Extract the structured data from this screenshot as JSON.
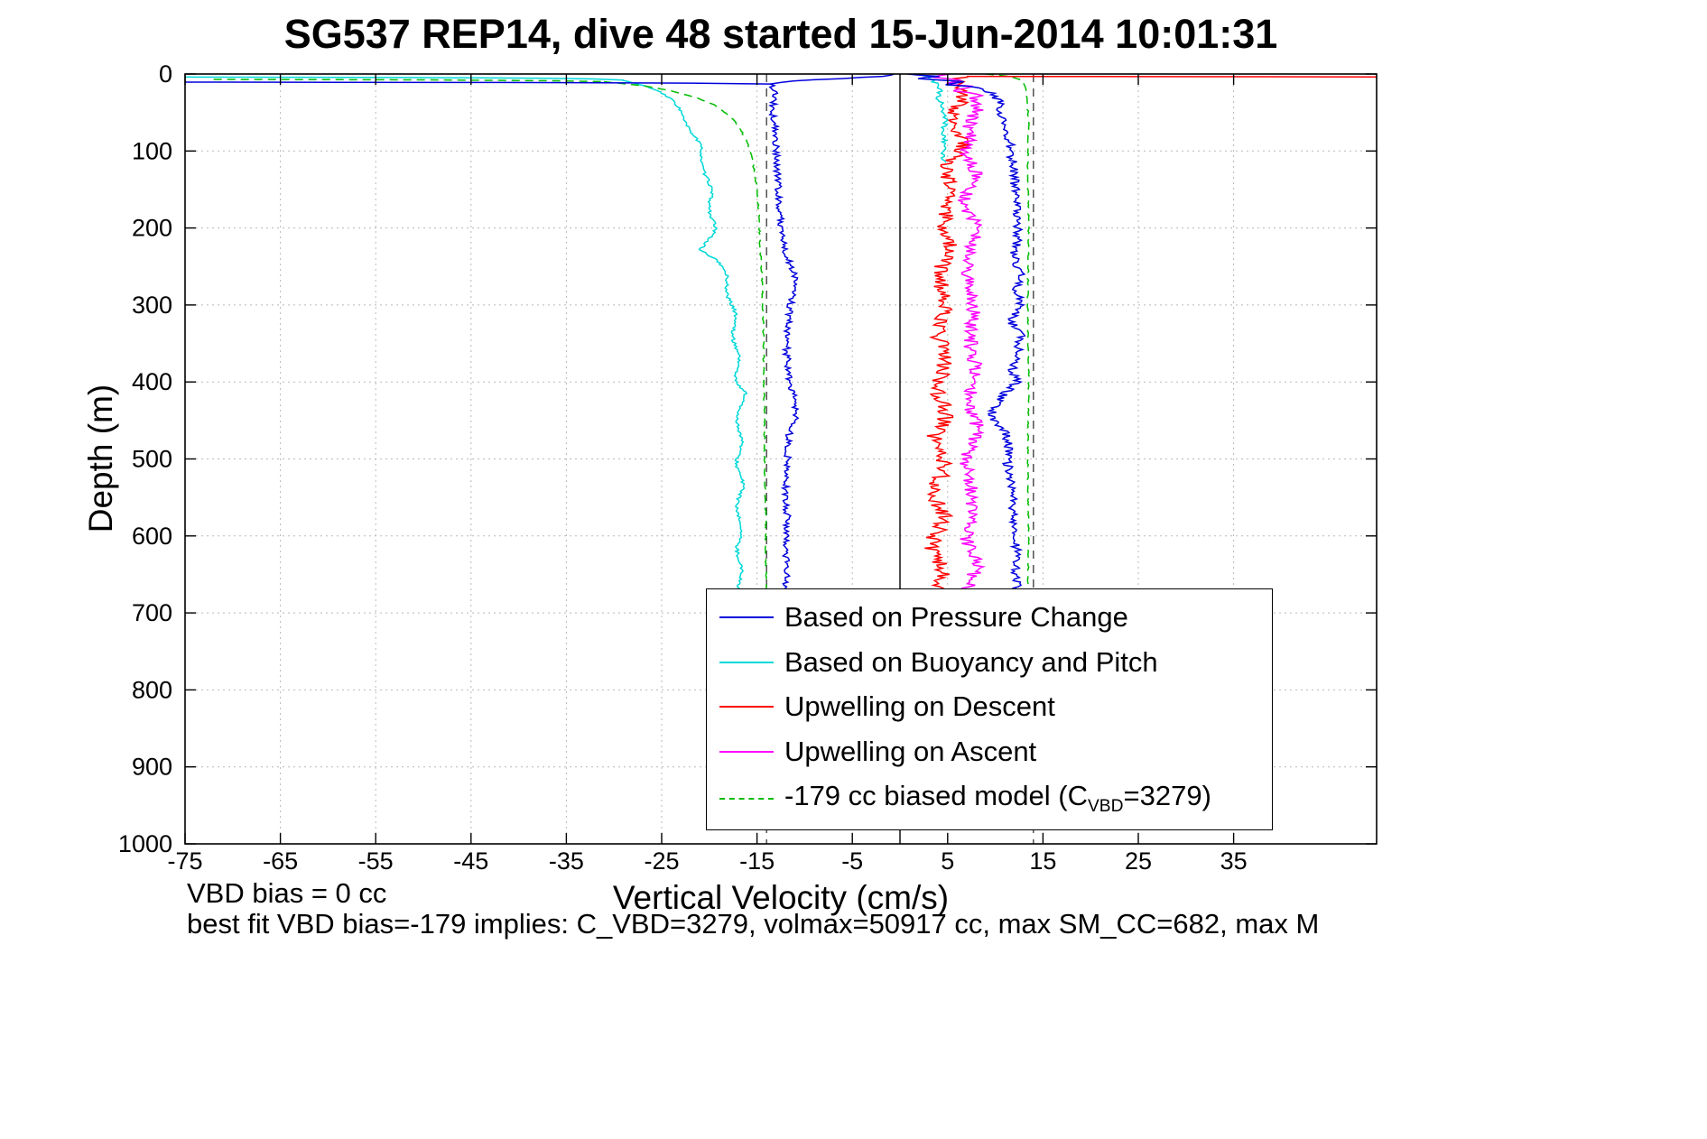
{
  "chart_data": {
    "type": "line",
    "title": "SG537 REP14, dive 48 started 15-Jun-2014 10:01:31",
    "xlabel": "Vertical Velocity (cm/s)",
    "ylabel": "Depth (m)",
    "xlim": [
      -75,
      50
    ],
    "ylim": [
      0,
      1000
    ],
    "y_inverted": true,
    "xticks": [
      -75,
      -65,
      -55,
      -45,
      -35,
      -25,
      -15,
      -5,
      5,
      15,
      25,
      35
    ],
    "yticks": [
      0,
      100,
      200,
      300,
      400,
      500,
      600,
      700,
      800,
      900,
      1000
    ],
    "grid": "dotted",
    "grid_color": "#b8b8b8",
    "ref_lines": {
      "solid_x": 0,
      "dashed_x": [
        -14,
        14
      ],
      "solid_color": "#000000",
      "dashed_color": "#444444"
    },
    "legend": {
      "position": "inside-lower-right",
      "model_label_parts": {
        "prefix": "-179 cc biased model (C",
        "sub": "VBD",
        "suffix": "=3279)"
      }
    },
    "series": [
      {
        "id": "pressure",
        "name": "Based on Pressure Change",
        "color": "#0000dd",
        "dash": false,
        "segments": [
          {
            "raw": true,
            "pts": [
              [
                10.5,
                -75
              ],
              [
                11,
                -42
              ],
              [
                11.8,
                -22
              ],
              [
                13,
                -13.5
              ]
            ]
          },
          {
            "noise": 0.35,
            "pts": [
              [
                0,
                -0.5
              ],
              [
                3,
                -2
              ],
              [
                6,
                -6
              ],
              [
                9,
                -11.5
              ],
              [
                13,
                -13.4
              ],
              [
                25,
                -13.1
              ],
              [
                45,
                -13.4
              ],
              [
                70,
                -13.1
              ],
              [
                100,
                -13.0
              ],
              [
                140,
                -12.8
              ],
              [
                180,
                -12.6
              ],
              [
                210,
                -12.4
              ],
              [
                235,
                -12.0
              ],
              [
                255,
                -11.2
              ],
              [
                275,
                -10.9
              ],
              [
                295,
                -11.4
              ],
              [
                320,
                -11.7
              ],
              [
                360,
                -11.9
              ],
              [
                400,
                -11.6
              ],
              [
                425,
                -11.0
              ],
              [
                445,
                -10.9
              ],
              [
                465,
                -11.6
              ],
              [
                500,
                -11.8
              ],
              [
                540,
                -12.0
              ],
              [
                580,
                -11.8
              ],
              [
                620,
                -12.0
              ],
              [
                660,
                -11.9
              ],
              [
                678,
                -12.1
              ]
            ]
          },
          {
            "noise": 0.5,
            "pts": [
              [
                0,
                0.5
              ],
              [
                3,
                4
              ],
              [
                6,
                2
              ],
              [
                10,
                7
              ],
              [
                14,
                5
              ],
              [
                18,
                8.5
              ],
              [
                25,
                9.5
              ],
              [
                35,
                10.3
              ],
              [
                60,
                10.8
              ],
              [
                90,
                11.5
              ],
              [
                120,
                11.9
              ],
              [
                160,
                12.2
              ],
              [
                200,
                12.4
              ],
              [
                240,
                12.0
              ],
              [
                260,
                12.8
              ],
              [
                280,
                12.2
              ],
              [
                300,
                12.8
              ],
              [
                320,
                11.5
              ],
              [
                340,
                12.6
              ],
              [
                360,
                12.4
              ],
              [
                380,
                11.8
              ],
              [
                400,
                12.2
              ],
              [
                415,
                11.0
              ],
              [
                430,
                10.0
              ],
              [
                445,
                9.6
              ],
              [
                460,
                10.8
              ],
              [
                480,
                11.4
              ],
              [
                500,
                11.2
              ],
              [
                530,
                11.6
              ],
              [
                560,
                11.9
              ],
              [
                590,
                12.0
              ],
              [
                620,
                12.2
              ],
              [
                650,
                12.1
              ],
              [
                678,
                12.3
              ]
            ]
          }
        ]
      },
      {
        "id": "buoyancy",
        "name": "Based on Buoyancy and Pitch",
        "color": "#00d8d8",
        "dash": false,
        "segments": [
          {
            "raw": true,
            "pts": [
              [
                4,
                -75
              ],
              [
                4.6,
                -52
              ],
              [
                5.4,
                -38
              ],
              [
                6.5,
                -32
              ],
              [
                8,
                -29
              ]
            ]
          },
          {
            "noise": 0.18,
            "wobble": {
              "amp": 0.25,
              "period": 55
            },
            "pts": [
              [
                8,
                -29
              ],
              [
                12,
                -27.5
              ],
              [
                18,
                -26
              ],
              [
                25,
                -25
              ],
              [
                35,
                -24
              ],
              [
                50,
                -23
              ],
              [
                65,
                -22.2
              ],
              [
                80,
                -21.6
              ],
              [
                100,
                -21.0
              ],
              [
                120,
                -20.5
              ],
              [
                140,
                -20.2
              ],
              [
                160,
                -19.9
              ],
              [
                180,
                -19.7
              ],
              [
                200,
                -19.6
              ],
              [
                215,
                -20.1
              ],
              [
                228,
                -20.7
              ],
              [
                240,
                -19.3
              ],
              [
                255,
                -18.6
              ],
              [
                270,
                -18.2
              ],
              [
                290,
                -17.8
              ],
              [
                310,
                -17.5
              ],
              [
                340,
                -17.3
              ],
              [
                370,
                -17.1
              ],
              [
                400,
                -17.0
              ],
              [
                413,
                -16.3
              ],
              [
                430,
                -16.9
              ],
              [
                460,
                -16.8
              ],
              [
                500,
                -16.9
              ],
              [
                540,
                -16.7
              ],
              [
                570,
                -17.0
              ],
              [
                600,
                -16.8
              ],
              [
                640,
                -16.9
              ],
              [
                678,
                -16.6
              ]
            ]
          },
          {
            "noise": 0.3,
            "pts": [
              [
                0,
                2
              ],
              [
                5,
                3.2
              ],
              [
                12,
                3.8
              ],
              [
                20,
                4.2
              ],
              [
                30,
                4.0
              ],
              [
                45,
                4.5
              ],
              [
                60,
                4.8
              ],
              [
                75,
                4.4
              ],
              [
                90,
                4.7
              ],
              [
                105,
                4.5
              ],
              [
                115,
                4.8
              ]
            ]
          }
        ]
      },
      {
        "id": "upwelling-descent",
        "name": "Upwelling on Descent",
        "color": "#ff0000",
        "dash": false,
        "segments": [
          {
            "raw": true,
            "pts": [
              [
                3,
                7
              ],
              [
                3.3,
                20
              ],
              [
                3.8,
                50
              ]
            ]
          },
          {
            "noise": 0.85,
            "wobble": {
              "amp": 0.5,
              "period": 70
            },
            "pts": [
              [
                4,
                6.5
              ],
              [
                10,
                5.5
              ],
              [
                20,
                6.0
              ],
              [
                35,
                6.5
              ],
              [
                50,
                6.2
              ],
              [
                70,
                5.8
              ],
              [
                90,
                6.3
              ],
              [
                110,
                5.6
              ],
              [
                130,
                5.2
              ],
              [
                150,
                5.5
              ],
              [
                170,
                4.9
              ],
              [
                190,
                5.3
              ],
              [
                210,
                4.6
              ],
              [
                230,
                4.9
              ],
              [
                250,
                4.4
              ],
              [
                270,
                4.7
              ],
              [
                300,
                4.3
              ],
              [
                330,
                4.6
              ],
              [
                360,
                4.2
              ],
              [
                390,
                4.5
              ],
              [
                420,
                4.1
              ],
              [
                450,
                4.4
              ],
              [
                480,
                4.0
              ],
              [
                510,
                4.3
              ],
              [
                540,
                3.9
              ],
              [
                570,
                4.2
              ],
              [
                600,
                3.8
              ],
              [
                640,
                4.0
              ],
              [
                678,
                3.7
              ]
            ]
          }
        ]
      },
      {
        "id": "upwelling-ascent",
        "name": "Upwelling on Ascent",
        "color": "#ff00ff",
        "dash": false,
        "segments": [
          {
            "noise": 0.75,
            "wobble": {
              "amp": 0.4,
              "period": 85
            },
            "pts": [
              [
                0,
                6
              ],
              [
                4,
                3.5
              ],
              [
                8,
                7
              ],
              [
                12,
                4.5
              ],
              [
                16,
                8
              ],
              [
                22,
                6
              ],
              [
                28,
                8.5
              ],
              [
                35,
                7
              ],
              [
                45,
                8
              ],
              [
                60,
                7.2
              ],
              [
                80,
                7.8
              ],
              [
                100,
                7.0
              ],
              [
                130,
                7.6
              ],
              [
                160,
                7.1
              ],
              [
                190,
                7.8
              ],
              [
                220,
                7.2
              ],
              [
                250,
                7.6
              ],
              [
                280,
                7.0
              ],
              [
                310,
                7.5
              ],
              [
                340,
                7.9
              ],
              [
                370,
                7.3
              ],
              [
                400,
                8.0
              ],
              [
                430,
                7.4
              ],
              [
                460,
                7.8
              ],
              [
                490,
                7.2
              ],
              [
                520,
                7.6
              ],
              [
                550,
                7.1
              ],
              [
                580,
                7.5
              ],
              [
                610,
                7.2
              ],
              [
                640,
                7.6
              ],
              [
                678,
                7.3
              ]
            ]
          }
        ]
      },
      {
        "id": "biased-model",
        "name": "-179 cc biased model (C_VBD=3279)",
        "color": "#00bb00",
        "dash": true,
        "segments": [
          {
            "raw": true,
            "pts": [
              [
                7,
                -72
              ],
              [
                7.6,
                -50
              ],
              [
                8.8,
                -36
              ],
              [
                10,
                -31
              ]
            ]
          },
          {
            "noise": 0.07,
            "pts": [
              [
                10,
                -31
              ],
              [
                15,
                -27
              ],
              [
                22,
                -24
              ],
              [
                30,
                -21.5
              ],
              [
                40,
                -19.5
              ],
              [
                55,
                -17.8
              ],
              [
                70,
                -16.8
              ],
              [
                90,
                -16.0
              ],
              [
                110,
                -15.5
              ],
              [
                140,
                -15.1
              ],
              [
                180,
                -14.8
              ],
              [
                220,
                -14.7
              ],
              [
                260,
                -14.5
              ],
              [
                300,
                -14.4
              ],
              [
                350,
                -14.3
              ],
              [
                400,
                -14.3
              ],
              [
                450,
                -14.2
              ],
              [
                500,
                -14.2
              ],
              [
                560,
                -14.1
              ],
              [
                620,
                -14.1
              ],
              [
                678,
                -14.0
              ]
            ]
          },
          {
            "noise": 0.06,
            "pts": [
              [
                0,
                9
              ],
              [
                3,
                11.5
              ],
              [
                8,
                12.8
              ],
              [
                20,
                13.2
              ],
              [
                60,
                13.5
              ],
              [
                120,
                13.4
              ],
              [
                200,
                13.5
              ],
              [
                300,
                13.4
              ],
              [
                400,
                13.5
              ],
              [
                500,
                13.4
              ],
              [
                600,
                13.5
              ],
              [
                678,
                13.4
              ]
            ]
          }
        ]
      }
    ]
  },
  "footnotes": {
    "vbd_bias": "VBD bias = 0 cc",
    "best_fit": "best fit VBD bias=-179 implies: C_VBD=3279, volmax=50917 cc, max SM_CC=682, max M"
  }
}
